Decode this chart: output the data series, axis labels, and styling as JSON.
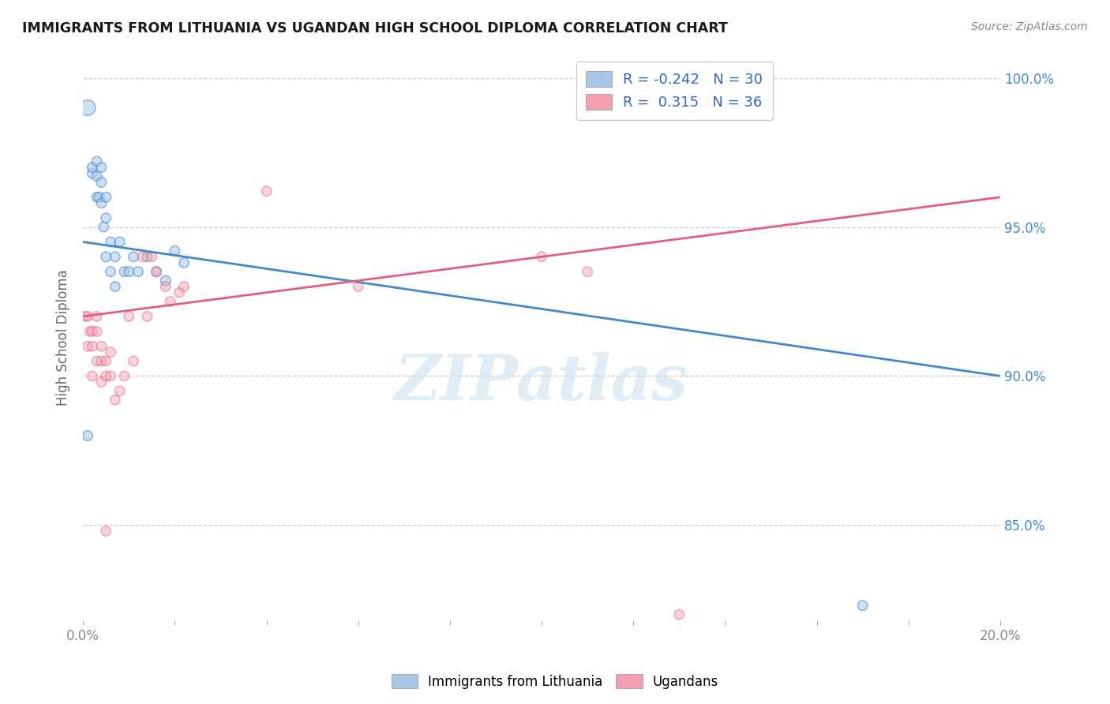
{
  "title": "IMMIGRANTS FROM LITHUANIA VS UGANDAN HIGH SCHOOL DIPLOMA CORRELATION CHART",
  "source": "Source: ZipAtlas.com",
  "ylabel": "High School Diploma",
  "xlim": [
    0.0,
    0.2
  ],
  "ylim": [
    0.818,
    1.008
  ],
  "ytick_vals": [
    0.85,
    0.9,
    0.95,
    1.0
  ],
  "ytick_labels": [
    "85.0%",
    "90.0%",
    "95.0%",
    "100.0%"
  ],
  "watermark": "ZIPatlas",
  "legend_blue_R": "-0.242",
  "legend_blue_N": "30",
  "legend_pink_R": "0.315",
  "legend_pink_N": "36",
  "blue_color": "#a8c8e8",
  "pink_color": "#f4a0b0",
  "blue_line_color": "#4488cc",
  "pink_line_color": "#e06080",
  "background_color": "#ffffff",
  "blue_line_y0": 0.945,
  "blue_line_y1": 0.9,
  "pink_line_y0": 0.92,
  "pink_line_y1": 0.96,
  "blue_scatter": {
    "x": [
      0.001,
      0.002,
      0.002,
      0.003,
      0.003,
      0.003,
      0.0035,
      0.004,
      0.004,
      0.004,
      0.0045,
      0.005,
      0.005,
      0.005,
      0.006,
      0.006,
      0.007,
      0.007,
      0.008,
      0.009,
      0.01,
      0.011,
      0.012,
      0.014,
      0.016,
      0.018,
      0.02,
      0.022,
      0.17,
      0.001
    ],
    "y": [
      0.99,
      0.968,
      0.97,
      0.96,
      0.967,
      0.972,
      0.96,
      0.965,
      0.958,
      0.97,
      0.95,
      0.953,
      0.94,
      0.96,
      0.935,
      0.945,
      0.94,
      0.93,
      0.945,
      0.935,
      0.935,
      0.94,
      0.935,
      0.94,
      0.935,
      0.932,
      0.942,
      0.938,
      0.823,
      0.88
    ],
    "sizes": [
      200,
      80,
      80,
      80,
      80,
      80,
      80,
      80,
      80,
      80,
      80,
      80,
      80,
      80,
      80,
      80,
      80,
      80,
      80,
      80,
      80,
      80,
      80,
      80,
      80,
      80,
      80,
      80,
      80,
      80
    ]
  },
  "pink_scatter": {
    "x": [
      0.0005,
      0.001,
      0.001,
      0.0015,
      0.002,
      0.002,
      0.002,
      0.003,
      0.003,
      0.003,
      0.004,
      0.004,
      0.004,
      0.005,
      0.005,
      0.006,
      0.006,
      0.007,
      0.008,
      0.009,
      0.01,
      0.011,
      0.013,
      0.014,
      0.015,
      0.016,
      0.018,
      0.019,
      0.021,
      0.022,
      0.1,
      0.11,
      0.04,
      0.06,
      0.13,
      0.005
    ],
    "y": [
      0.92,
      0.92,
      0.91,
      0.915,
      0.91,
      0.915,
      0.9,
      0.915,
      0.92,
      0.905,
      0.91,
      0.905,
      0.898,
      0.905,
      0.9,
      0.9,
      0.908,
      0.892,
      0.895,
      0.9,
      0.92,
      0.905,
      0.94,
      0.92,
      0.94,
      0.935,
      0.93,
      0.925,
      0.928,
      0.93,
      0.94,
      0.935,
      0.962,
      0.93,
      0.82,
      0.848
    ],
    "sizes": [
      80,
      80,
      80,
      80,
      80,
      80,
      80,
      80,
      80,
      80,
      80,
      80,
      80,
      80,
      80,
      80,
      80,
      80,
      80,
      80,
      80,
      80,
      80,
      80,
      80,
      80,
      80,
      80,
      80,
      80,
      80,
      80,
      80,
      80,
      80,
      80
    ]
  }
}
